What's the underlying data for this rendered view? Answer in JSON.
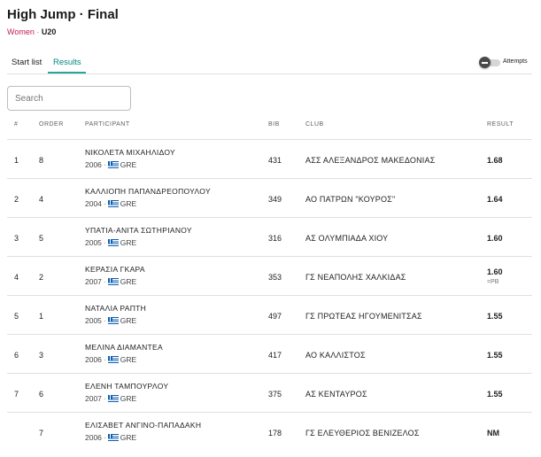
{
  "header": {
    "title": "High Jump · Final",
    "category": "Women",
    "separator": "·",
    "age_group": "U20"
  },
  "tabs": [
    {
      "label": "Start list",
      "active": false
    },
    {
      "label": "Results",
      "active": true
    }
  ],
  "toggle": {
    "label": "Attempts",
    "on": false
  },
  "search": {
    "placeholder": "Search",
    "value": ""
  },
  "table": {
    "columns": [
      "#",
      "ORDER",
      "PARTICIPANT",
      "BIB",
      "CLUB",
      "RESULT"
    ],
    "rows": [
      {
        "rank": "1",
        "order": "8",
        "name": "ΝΙΚΟΛΕΤΑ ΜΙΧΑΗΛΙΔΟΥ",
        "year": "2006",
        "country": "GRE",
        "bib": "431",
        "club": "ΑΣΣ ΑΛΕΞΑΝΔΡΟΣ ΜΑΚΕΔΟΝΙΑΣ",
        "result": "1.68",
        "note": ""
      },
      {
        "rank": "2",
        "order": "4",
        "name": "ΚΑΛΛΙΟΠΗ ΠΑΠΑΝΔΡΕΟΠΟΥΛΟΥ",
        "year": "2004",
        "country": "GRE",
        "bib": "349",
        "club": "ΑΟ ΠΑΤΡΩΝ \"ΚΟΥΡΟΣ\"",
        "result": "1.64",
        "note": ""
      },
      {
        "rank": "3",
        "order": "5",
        "name": "ΥΠΑΤΙΑ-ΑΝΙΤΑ ΣΩΤΗΡΙΑΝΟΥ",
        "year": "2005",
        "country": "GRE",
        "bib": "316",
        "club": "ΑΣ ΟΛΥΜΠΙΑΔΑ ΧΙΟΥ",
        "result": "1.60",
        "note": ""
      },
      {
        "rank": "4",
        "order": "2",
        "name": "ΚΕΡΑΣΙΑ ΓΚΑΡΑ",
        "year": "2007",
        "country": "GRE",
        "bib": "353",
        "club": "ΓΣ ΝΕΑΠΟΛΗΣ ΧΑΛΚΙΔΑΣ",
        "result": "1.60",
        "note": "=PB"
      },
      {
        "rank": "5",
        "order": "1",
        "name": "ΝΑΤΑΛΙΑ ΡΑΠΤΗ",
        "year": "2005",
        "country": "GRE",
        "bib": "497",
        "club": "ΓΣ ΠΡΩΤΕΑΣ ΗΓΟΥΜΕΝΙΤΣΑΣ",
        "result": "1.55",
        "note": ""
      },
      {
        "rank": "6",
        "order": "3",
        "name": "ΜΕΛΙΝΑ ΔΙΑΜΑΝΤΕΑ",
        "year": "2006",
        "country": "GRE",
        "bib": "417",
        "club": "ΑΟ ΚΑΛΛΙΣΤΟΣ",
        "result": "1.55",
        "note": ""
      },
      {
        "rank": "7",
        "order": "6",
        "name": "ΕΛΕΝΗ ΤΑΜΠΟΥΡΛΟΥ",
        "year": "2007",
        "country": "GRE",
        "bib": "375",
        "club": "ΑΣ ΚΕΝΤΑΥΡΟΣ",
        "result": "1.55",
        "note": ""
      },
      {
        "rank": "",
        "order": "7",
        "name": "ΕΛΙΣΑΒΕΤ ΑΝΓΙΝΟ-ΠΑΠΑΔΑΚΗ",
        "year": "2006",
        "country": "GRE",
        "bib": "178",
        "club": "ΓΣ ΕΛΕΥΘΕΡΙΟΣ ΒΕΝΙΖΕΛΟΣ",
        "result": "NM",
        "note": ""
      }
    ]
  },
  "colors": {
    "accent": "#26a69a",
    "category": "#c2185b",
    "flag_blue": "#0d5eaf"
  }
}
